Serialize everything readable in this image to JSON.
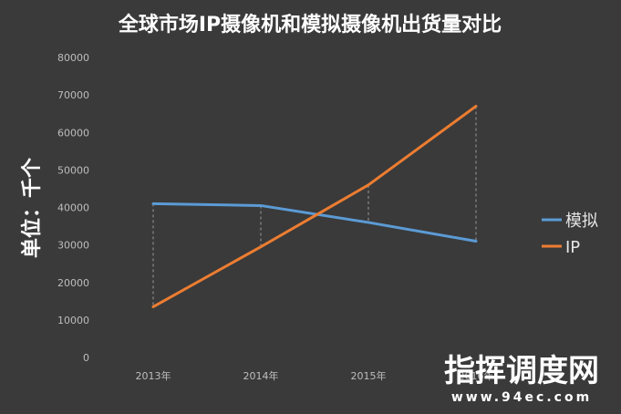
{
  "chart_data": {
    "type": "line",
    "title": "全球市场IP摄像机和模拟摄像机出货量对比",
    "ylabel": "单位：千个",
    "xlabel": "",
    "categories": [
      "2013年",
      "2014年",
      "2015年",
      "2016年"
    ],
    "ylim": [
      0,
      80000
    ],
    "yticks": [
      0,
      10000,
      20000,
      30000,
      40000,
      50000,
      60000,
      70000,
      80000
    ],
    "legend_position": "right",
    "grid": false,
    "series": [
      {
        "name": "模拟",
        "color": "#5b9bd5",
        "values": [
          41000,
          40500,
          36000,
          31000
        ]
      },
      {
        "name": "IP",
        "color": "#ed7d31",
        "values": [
          13500,
          29500,
          46000,
          67000
        ]
      }
    ]
  },
  "watermark": {
    "text": "指挥调度网",
    "sub": "www.94ec.com"
  }
}
